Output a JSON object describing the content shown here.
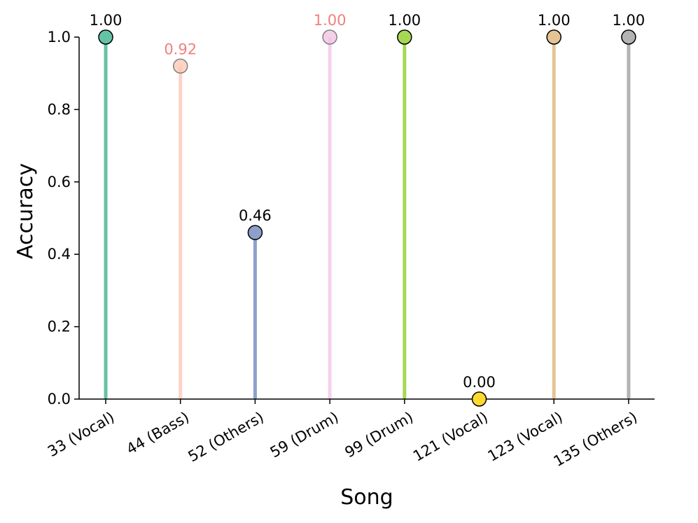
{
  "chart_data": {
    "type": "stem",
    "title": "",
    "xlabel": "Song",
    "ylabel": "Accuracy",
    "ylim": [
      0.0,
      1.0
    ],
    "yticks": [
      "0.0",
      "0.2",
      "0.4",
      "0.6",
      "0.8",
      "1.0"
    ],
    "grid": false,
    "legend": "none",
    "points": [
      {
        "category": "33 (Vocal)",
        "value": 1.0,
        "label": "1.00",
        "color": "#66c2a5",
        "faded": false
      },
      {
        "category": "44 (Bass)",
        "value": 0.92,
        "label": "0.92",
        "color": "#fcc5b0",
        "faded": true
      },
      {
        "category": "52 (Others)",
        "value": 0.46,
        "label": "0.46",
        "color": "#8da0cb",
        "faded": false
      },
      {
        "category": "59 (Drum)",
        "value": 1.0,
        "label": "1.00",
        "color": "#f2c1e1",
        "faded": true
      },
      {
        "category": "99 (Drum)",
        "value": 1.0,
        "label": "1.00",
        "color": "#a6d854",
        "faded": false
      },
      {
        "category": "121 (Vocal)",
        "value": 0.0,
        "label": "0.00",
        "color": "#ffd92f",
        "faded": false
      },
      {
        "category": "123 (Vocal)",
        "value": 1.0,
        "label": "1.00",
        "color": "#e5c494",
        "faded": false
      },
      {
        "category": "135 (Others)",
        "value": 1.0,
        "label": "1.00",
        "color": "#b3b3b3",
        "faded": false
      }
    ],
    "faded_label_color": "#f08080"
  }
}
